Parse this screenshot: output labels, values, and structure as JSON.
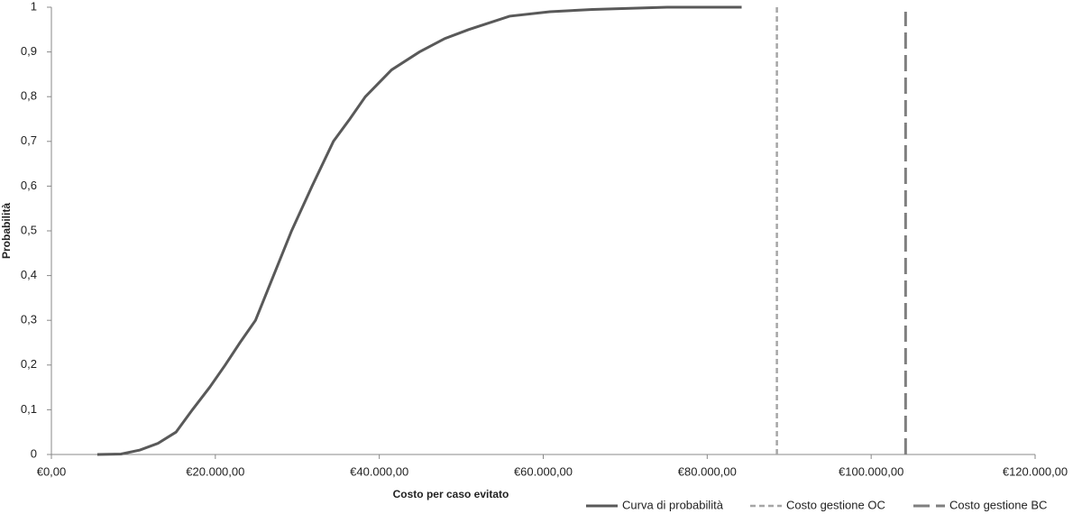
{
  "chart_data": {
    "type": "line",
    "xlabel": "Costo per caso evitato",
    "ylabel": "Probabilità",
    "xlim": [
      0,
      120000
    ],
    "ylim": [
      0,
      1
    ],
    "xticks": [
      {
        "value": 0,
        "label": "€0,00"
      },
      {
        "value": 20000,
        "label": "€20.000,00"
      },
      {
        "value": 40000,
        "label": "€40.000,00"
      },
      {
        "value": 60000,
        "label": "€60.000,00"
      },
      {
        "value": 80000,
        "label": "€80.000,00"
      },
      {
        "value": 100000,
        "label": "€100.000,00"
      },
      {
        "value": 120000,
        "label": "€120.000,00"
      }
    ],
    "yticks": [
      0,
      {
        "value": 0.1,
        "label": "0,1"
      },
      {
        "value": 0.2,
        "label": "0,2"
      },
      {
        "value": 0.3,
        "label": "0,3"
      },
      {
        "value": 0.4,
        "label": "0,4"
      },
      {
        "value": 0.5,
        "label": "0,5"
      },
      {
        "value": 0.6,
        "label": "0,6"
      },
      {
        "value": 0.7,
        "label": "0,7"
      },
      {
        "value": 0.8,
        "label": "0,8"
      },
      {
        "value": 0.9,
        "label": "0,9"
      },
      1
    ],
    "grid": false,
    "legend": "bottom-right",
    "series": [
      {
        "name": "Curva di probabilità",
        "color": "#595959",
        "dash": "solid",
        "x": [
          5600,
          8500,
          10800,
          13000,
          15200,
          17200,
          19300,
          21200,
          23000,
          24900,
          27100,
          29300,
          31800,
          34400,
          36400,
          38300,
          41500,
          44900,
          48000,
          50900,
          55900,
          60800,
          66000,
          75100,
          84200
        ],
        "values": [
          0,
          0.001,
          0.01,
          0.025,
          0.05,
          0.1,
          0.15,
          0.2,
          0.25,
          0.3,
          0.4,
          0.5,
          0.6,
          0.7,
          0.75,
          0.8,
          0.86,
          0.9,
          0.93,
          0.95,
          0.98,
          0.99,
          0.995,
          1,
          1
        ]
      },
      {
        "name": "Costo gestione OC",
        "color": "#a6a6a6",
        "dash": "short",
        "x": [
          88500,
          88500
        ],
        "values": [
          0,
          1
        ]
      },
      {
        "name": "Costo gestione BC",
        "color": "#7f7f7f",
        "dash": "long",
        "x": [
          104200,
          104200
        ],
        "values": [
          0,
          0.99
        ]
      }
    ]
  }
}
